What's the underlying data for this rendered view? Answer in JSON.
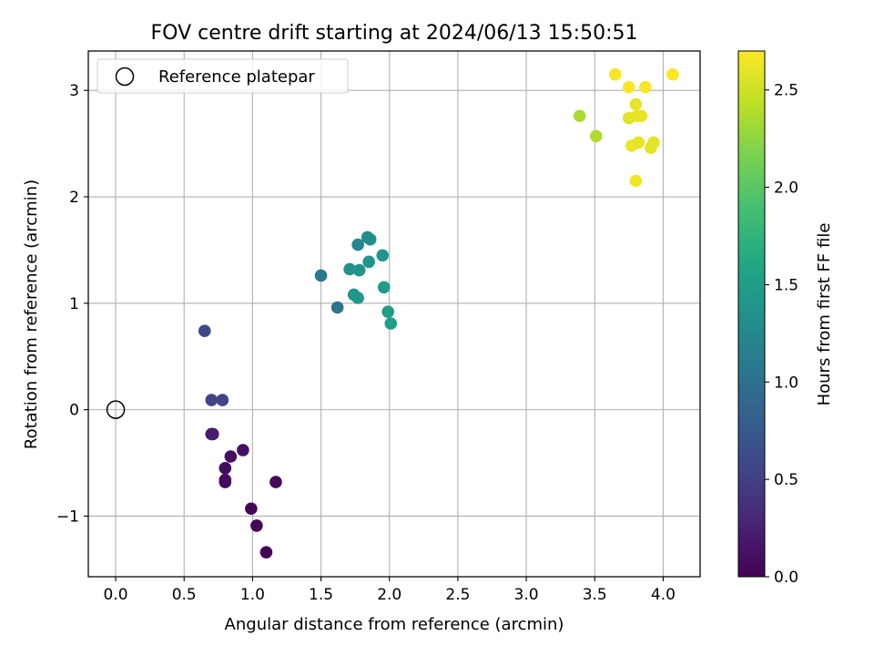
{
  "chart_data": {
    "type": "scatter",
    "title": "FOV centre drift starting at 2024/06/13 15:50:51",
    "xlabel": "Angular distance from reference (arcmin)",
    "ylabel": "Rotation from reference (arcmin)",
    "xlim": [
      -0.2,
      4.27
    ],
    "ylim": [
      -1.57,
      3.37
    ],
    "xticks": [
      0.0,
      0.5,
      1.0,
      1.5,
      2.0,
      2.5,
      3.0,
      3.5,
      4.0
    ],
    "xtick_labels": [
      "0.0",
      "0.5",
      "1.0",
      "1.5",
      "2.0",
      "2.5",
      "3.0",
      "3.5",
      "4.0"
    ],
    "yticks": [
      -1,
      0,
      1,
      2,
      3
    ],
    "ytick_labels": [
      "−1",
      "0",
      "1",
      "2",
      "3"
    ],
    "grid": true,
    "legend": {
      "position": "top-left",
      "label": "Reference platepar"
    },
    "reference_point": {
      "x": 0.0,
      "y": 0.0
    },
    "colorbar": {
      "label": "Hours from first FF file",
      "colormap": "viridis",
      "range": [
        0.0,
        2.7
      ],
      "ticks": [
        0.0,
        0.5,
        1.0,
        1.5,
        2.0,
        2.5
      ],
      "tick_labels": [
        "0.0",
        "0.5",
        "1.0",
        "1.5",
        "2.0",
        "2.5"
      ]
    },
    "points": [
      {
        "x": 1.1,
        "y": -1.34,
        "c": 0.02
      },
      {
        "x": 1.03,
        "y": -1.09,
        "c": 0.03
      },
      {
        "x": 0.99,
        "y": -0.93,
        "c": 0.04
      },
      {
        "x": 1.17,
        "y": -0.68,
        "c": 0.05
      },
      {
        "x": 0.8,
        "y": -0.68,
        "c": 0.06
      },
      {
        "x": 0.8,
        "y": -0.66,
        "c": 0.07
      },
      {
        "x": 0.8,
        "y": -0.55,
        "c": 0.08
      },
      {
        "x": 0.84,
        "y": -0.44,
        "c": 0.1
      },
      {
        "x": 0.93,
        "y": -0.38,
        "c": 0.12
      },
      {
        "x": 0.71,
        "y": -0.23,
        "c": 0.2
      },
      {
        "x": 0.7,
        "y": -0.23,
        "c": 0.21
      },
      {
        "x": 0.7,
        "y": 0.09,
        "c": 0.55
      },
      {
        "x": 0.78,
        "y": 0.09,
        "c": 0.55
      },
      {
        "x": 0.65,
        "y": 0.74,
        "c": 0.6
      },
      {
        "x": 1.62,
        "y": 0.96,
        "c": 1.05
      },
      {
        "x": 1.5,
        "y": 1.26,
        "c": 1.1
      },
      {
        "x": 1.77,
        "y": 1.55,
        "c": 1.25
      },
      {
        "x": 1.84,
        "y": 1.62,
        "c": 1.3
      },
      {
        "x": 1.86,
        "y": 1.6,
        "c": 1.32
      },
      {
        "x": 1.71,
        "y": 1.32,
        "c": 1.35
      },
      {
        "x": 1.78,
        "y": 1.31,
        "c": 1.36
      },
      {
        "x": 1.85,
        "y": 1.39,
        "c": 1.38
      },
      {
        "x": 1.95,
        "y": 1.45,
        "c": 1.4
      },
      {
        "x": 1.74,
        "y": 1.08,
        "c": 1.42
      },
      {
        "x": 1.77,
        "y": 1.05,
        "c": 1.43
      },
      {
        "x": 1.96,
        "y": 1.15,
        "c": 1.45
      },
      {
        "x": 1.99,
        "y": 0.92,
        "c": 1.48
      },
      {
        "x": 2.01,
        "y": 0.81,
        "c": 1.5
      },
      {
        "x": 3.39,
        "y": 2.76,
        "c": 2.35
      },
      {
        "x": 3.51,
        "y": 2.57,
        "c": 2.38
      },
      {
        "x": 3.65,
        "y": 3.15,
        "c": 2.68
      },
      {
        "x": 3.75,
        "y": 3.03,
        "c": 2.68
      },
      {
        "x": 3.87,
        "y": 3.03,
        "c": 2.68
      },
      {
        "x": 4.07,
        "y": 3.15,
        "c": 2.69
      },
      {
        "x": 3.8,
        "y": 2.87,
        "c": 2.6
      },
      {
        "x": 3.75,
        "y": 2.74,
        "c": 2.58
      },
      {
        "x": 3.81,
        "y": 2.76,
        "c": 2.6
      },
      {
        "x": 3.84,
        "y": 2.76,
        "c": 2.61
      },
      {
        "x": 3.77,
        "y": 2.48,
        "c": 2.62
      },
      {
        "x": 3.82,
        "y": 2.51,
        "c": 2.6
      },
      {
        "x": 3.91,
        "y": 2.46,
        "c": 2.6
      },
      {
        "x": 3.93,
        "y": 2.51,
        "c": 2.59
      },
      {
        "x": 3.8,
        "y": 2.15,
        "c": 2.65
      }
    ]
  }
}
